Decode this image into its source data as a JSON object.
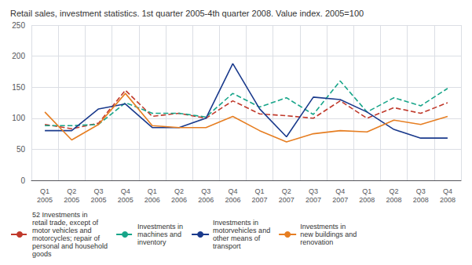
{
  "chart_data": {
    "type": "line",
    "title": "Retail sales, investment statistics. 1st quarter 2005-4th quarter 2008. Value index. 2005=100",
    "categories": [
      "Q1\n2005",
      "Q2\n2005",
      "Q3\n2005",
      "Q4\n2005",
      "Q1\n2006",
      "Q2\n2006",
      "Q3\n2006",
      "Q4\n2006",
      "Q1\n2007",
      "Q2\n2007",
      "Q3\n2007",
      "Q4\n2007",
      "Q1\n2008",
      "Q2\n2008",
      "Q3\n2008",
      "Q4\n2008"
    ],
    "series": [
      {
        "name": "52 Investments in\nretail trade, except of\nmotor vehicles and\nmotorcycles; repair of\npersonal and household\ngoods",
        "color": "#c0392b",
        "line_style": "dashed",
        "values": [
          90,
          83,
          92,
          145,
          103,
          108,
          100,
          128,
          107,
          104,
          100,
          128,
          100,
          117,
          108,
          125
        ]
      },
      {
        "name": "Investments in\nmachines and\ninventory",
        "color": "#17a589",
        "line_style": "dashed",
        "values": [
          88,
          88,
          90,
          125,
          108,
          108,
          102,
          140,
          118,
          133,
          106,
          160,
          110,
          133,
          120,
          148
        ]
      },
      {
        "name": "Investments in\nmotorvehicles and\nother means of\ntransport",
        "color": "#1a3a8c",
        "line_style": "solid",
        "values": [
          80,
          80,
          115,
          123,
          85,
          85,
          100,
          188,
          115,
          70,
          134,
          130,
          110,
          82,
          68,
          68
        ]
      },
      {
        "name": "Investments in\nnew buildings and\nrenovation",
        "color": "#e67e22",
        "line_style": "solid",
        "values": [
          110,
          65,
          90,
          140,
          88,
          85,
          85,
          103,
          80,
          62,
          75,
          80,
          78,
          97,
          90,
          103
        ]
      }
    ],
    "ylim": [
      0,
      250
    ],
    "yticks": [
      0,
      50,
      100,
      150,
      200,
      250
    ],
    "grid": true,
    "legend": "bottom"
  }
}
